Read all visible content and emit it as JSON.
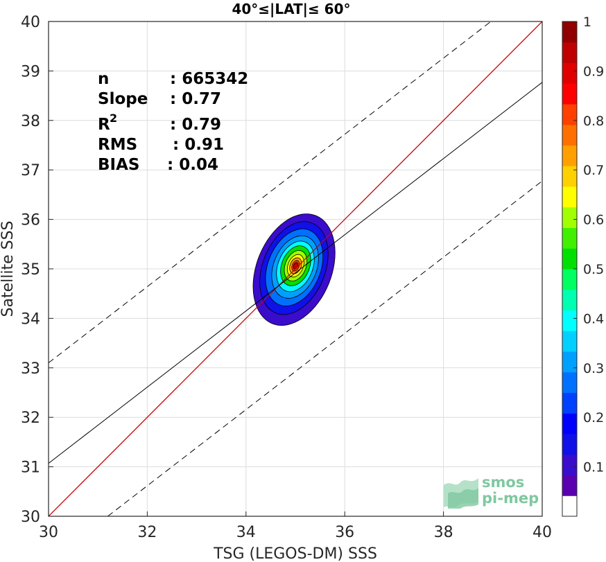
{
  "chart_data": {
    "type": "contour",
    "title": "40°≤|LAT|≤ 60°",
    "xlabel": "TSG (LEGOS-DM) SSS",
    "ylabel": "Satellite SSS",
    "xlim": [
      30,
      40
    ],
    "ylim": [
      30,
      40
    ],
    "xticks": [
      "30",
      "32",
      "34",
      "36",
      "38",
      "40"
    ],
    "yticks": [
      "30",
      "31",
      "32",
      "33",
      "34",
      "35",
      "36",
      "37",
      "38",
      "39",
      "40"
    ],
    "grid": true,
    "stats": {
      "n_label": "n",
      "n_value": ": 665342",
      "slope_label": "Slope",
      "slope_value": ": 0.77",
      "r2_label": "R",
      "r2_sup": "2",
      "r2_value": ": 0.79",
      "rms_label": "RMS",
      "rms_value": ": 0.91",
      "bias_label": "BIAS",
      "bias_value": ": 0.04"
    },
    "lines": {
      "one_to_one": {
        "slope": 1,
        "intercept": 0,
        "color": "#cc0000"
      },
      "fit": {
        "slope": 0.77,
        "x0": 30,
        "y0": 31.07,
        "style": "solid",
        "color": "#000000"
      },
      "fit_upper": {
        "slope": 0.77,
        "x0": 30,
        "y0": 33.1,
        "style": "dashed",
        "color": "#000000"
      },
      "fit_lower": {
        "slope": 0.77,
        "x0": 31.2,
        "y0": 30,
        "style": "dashed",
        "color": "#000000"
      }
    },
    "density_center": {
      "x": 35.0,
      "y": 35.05
    },
    "colorbar": {
      "range": [
        0,
        1
      ],
      "ticks": [
        "0.1",
        "0.2",
        "0.3",
        "0.4",
        "0.5",
        "0.6",
        "0.7",
        "0.8",
        "0.9",
        "1"
      ],
      "colors": [
        "#ffffff",
        "#5a00b0",
        "#3a0ccc",
        "#1010e8",
        "#0000ff",
        "#0040ff",
        "#0070ff",
        "#00a0ff",
        "#00d0ff",
        "#00ffff",
        "#00ffb0",
        "#00ff60",
        "#00e000",
        "#40f000",
        "#a0ff00",
        "#ffff00",
        "#ffd000",
        "#ffa000",
        "#ff7000",
        "#ff4000",
        "#ff0000",
        "#e00000",
        "#c00000",
        "#900000"
      ]
    },
    "watermark": {
      "line1": "smos",
      "line2": "pi-mep"
    }
  }
}
